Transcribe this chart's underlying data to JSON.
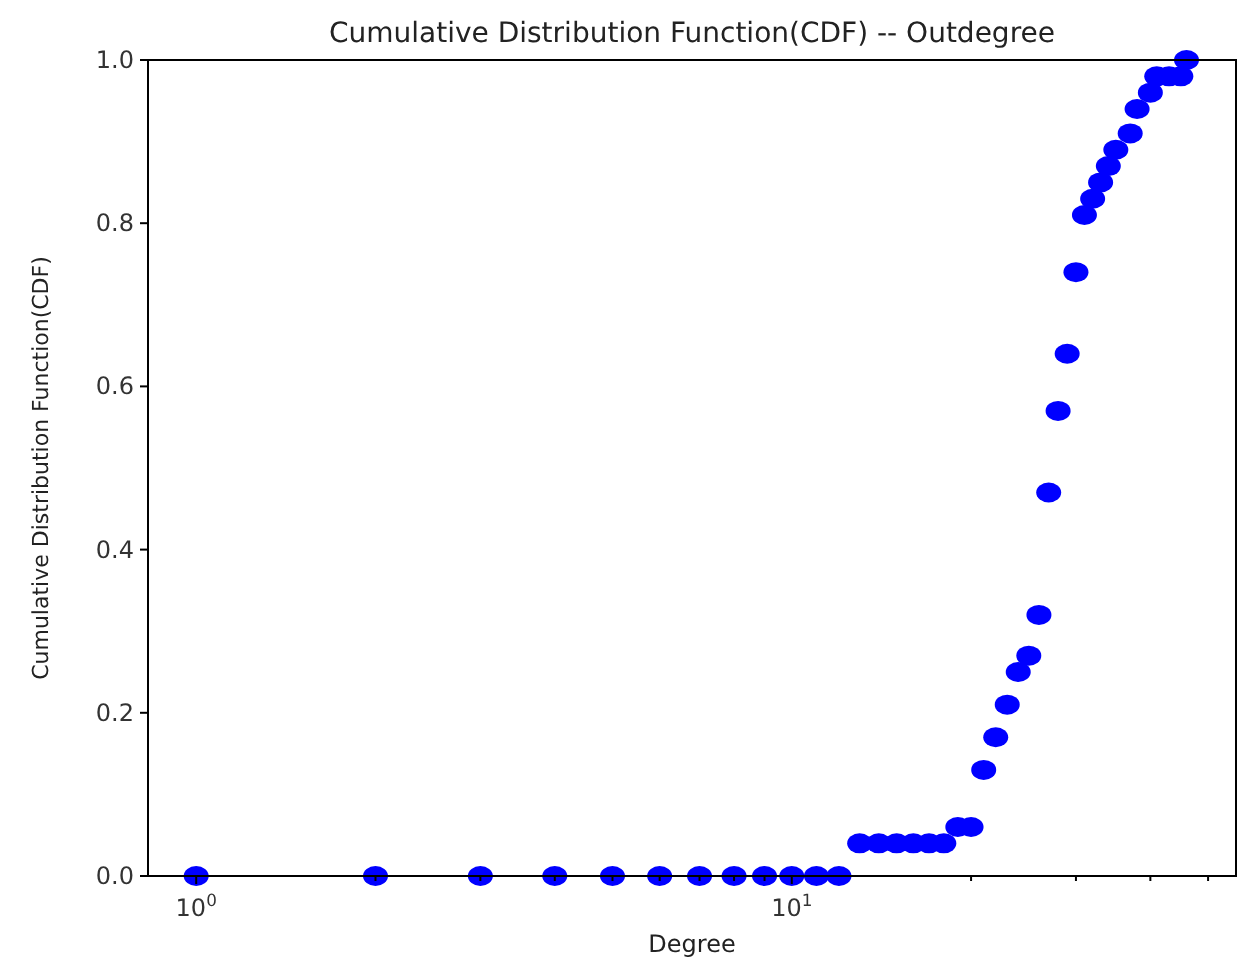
{
  "chart_data": {
    "type": "scatter",
    "title": "Cumulative Distribution Function(CDF) -- Outdegree",
    "xlabel": "Degree",
    "ylabel": "Cumulative Distribution Function(CDF)",
    "log": "x",
    "marker": "circle",
    "grid": false,
    "xlim": [
      0.83,
      55.7
    ],
    "ylim": [
      0,
      1
    ],
    "xticks": [
      {
        "value": 1,
        "label": "10$^{0}$"
      },
      {
        "value": 2,
        "label": null
      },
      {
        "value": 3,
        "label": null
      },
      {
        "value": 4,
        "label": null
      },
      {
        "value": 5,
        "label": null
      },
      {
        "value": 6,
        "label": null
      },
      {
        "value": 7,
        "label": null
      },
      {
        "value": 8,
        "label": null
      },
      {
        "value": 9,
        "label": null
      },
      {
        "value": 10,
        "label": "10$^{1}$"
      },
      {
        "value": 20,
        "label": null
      },
      {
        "value": 30,
        "label": null
      },
      {
        "value": 40,
        "label": null
      },
      {
        "value": 50,
        "label": null
      }
    ],
    "yticks": [
      {
        "value": 0,
        "label": "0.0"
      },
      0.2,
      0.4,
      0.6,
      0.8,
      {
        "value": 1,
        "label": "1.0"
      }
    ],
    "series": [
      {
        "color": "#0000ff",
        "x": [
          1,
          2,
          3,
          4,
          5,
          6,
          7,
          8,
          9,
          10,
          11,
          12,
          13,
          14,
          15,
          16,
          17,
          18,
          19,
          20,
          21,
          22,
          23,
          24,
          25,
          26,
          27,
          28,
          29,
          30,
          31,
          32,
          33,
          34,
          35,
          37,
          38,
          40,
          41,
          43,
          45,
          46
        ],
        "values": [
          0,
          0,
          0,
          0,
          0,
          0,
          0,
          0,
          0,
          0,
          0,
          0,
          0.04,
          0.04,
          0.04,
          0.04,
          0.04,
          0.04,
          0.06,
          0.06,
          0.13,
          0.17,
          0.21,
          0.25,
          0.27,
          0.32,
          0.47,
          0.57,
          0.64,
          0.74,
          0.81,
          0.83,
          0.85,
          0.87,
          0.89,
          0.91,
          0.94,
          0.96,
          0.98,
          0.98,
          0.98,
          1
        ]
      }
    ]
  }
}
